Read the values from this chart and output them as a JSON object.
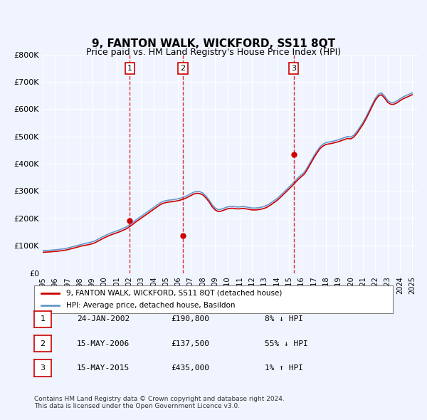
{
  "title": "9, FANTON WALK, WICKFORD, SS11 8QT",
  "subtitle": "Price paid vs. HM Land Registry's House Price Index (HPI)",
  "ylabel": "",
  "xlim": [
    1995,
    2025.5
  ],
  "ylim": [
    0,
    800000
  ],
  "yticks": [
    0,
    100000,
    200000,
    300000,
    400000,
    500000,
    600000,
    700000,
    800000
  ],
  "ytick_labels": [
    "£0",
    "£100K",
    "£200K",
    "£300K",
    "£400K",
    "£500K",
    "£600K",
    "£700K",
    "£800K"
  ],
  "background_color": "#f0f4ff",
  "plot_bg_color": "#f0f4ff",
  "hpi_color": "#6699cc",
  "property_color": "#cc0000",
  "transactions": [
    {
      "date": "24-JAN-2002",
      "year": 2002.07,
      "price": 190800,
      "label": "1",
      "hpi_rel": "8% ↓ HPI"
    },
    {
      "date": "15-MAY-2006",
      "year": 2006.37,
      "price": 137500,
      "label": "2",
      "hpi_rel": "55% ↓ HPI"
    },
    {
      "date": "15-MAY-2015",
      "year": 2015.37,
      "price": 435000,
      "label": "3",
      "hpi_rel": "1% ↑ HPI"
    }
  ],
  "legend_property": "9, FANTON WALK, WICKFORD, SS11 8QT (detached house)",
  "legend_hpi": "HPI: Average price, detached house, Basildon",
  "footer": "Contains HM Land Registry data © Crown copyright and database right 2024.\nThis data is licensed under the Open Government Licence v3.0.",
  "hpi_data": {
    "years": [
      1995.0,
      1995.25,
      1995.5,
      1995.75,
      1996.0,
      1996.25,
      1996.5,
      1996.75,
      1997.0,
      1997.25,
      1997.5,
      1997.75,
      1998.0,
      1998.25,
      1998.5,
      1998.75,
      1999.0,
      1999.25,
      1999.5,
      1999.75,
      2000.0,
      2000.25,
      2000.5,
      2000.75,
      2001.0,
      2001.25,
      2001.5,
      2001.75,
      2002.0,
      2002.25,
      2002.5,
      2002.75,
      2003.0,
      2003.25,
      2003.5,
      2003.75,
      2004.0,
      2004.25,
      2004.5,
      2004.75,
      2005.0,
      2005.25,
      2005.5,
      2005.75,
      2006.0,
      2006.25,
      2006.5,
      2006.75,
      2007.0,
      2007.25,
      2007.5,
      2007.75,
      2008.0,
      2008.25,
      2008.5,
      2008.75,
      2009.0,
      2009.25,
      2009.5,
      2009.75,
      2010.0,
      2010.25,
      2010.5,
      2010.75,
      2011.0,
      2011.25,
      2011.5,
      2011.75,
      2012.0,
      2012.25,
      2012.5,
      2012.75,
      2013.0,
      2013.25,
      2013.5,
      2013.75,
      2014.0,
      2014.25,
      2014.5,
      2014.75,
      2015.0,
      2015.25,
      2015.5,
      2015.75,
      2016.0,
      2016.25,
      2016.5,
      2016.75,
      2017.0,
      2017.25,
      2017.5,
      2017.75,
      2018.0,
      2018.25,
      2018.5,
      2018.75,
      2019.0,
      2019.25,
      2019.5,
      2019.75,
      2020.0,
      2020.25,
      2020.5,
      2020.75,
      2021.0,
      2021.25,
      2021.5,
      2021.75,
      2022.0,
      2022.25,
      2022.5,
      2022.75,
      2023.0,
      2023.25,
      2023.5,
      2023.75,
      2024.0,
      2024.25,
      2024.5,
      2024.75,
      2025.0
    ],
    "values": [
      82000,
      82500,
      83000,
      84000,
      85000,
      86000,
      87500,
      89000,
      91000,
      94000,
      97000,
      100000,
      103000,
      106000,
      109000,
      111000,
      114000,
      118000,
      124000,
      130000,
      136000,
      141000,
      146000,
      150000,
      154000,
      158000,
      163000,
      168000,
      175000,
      183000,
      192000,
      200000,
      208000,
      216000,
      224000,
      232000,
      240000,
      248000,
      256000,
      262000,
      265000,
      267000,
      268000,
      270000,
      272000,
      275000,
      279000,
      284000,
      290000,
      296000,
      299000,
      298000,
      293000,
      282000,
      268000,
      250000,
      238000,
      232000,
      234000,
      238000,
      242000,
      244000,
      244000,
      242000,
      242000,
      244000,
      242000,
      240000,
      238000,
      238000,
      239000,
      241000,
      244000,
      249000,
      256000,
      264000,
      272000,
      282000,
      293000,
      304000,
      315000,
      326000,
      338000,
      350000,
      360000,
      370000,
      388000,
      408000,
      428000,
      446000,
      462000,
      472000,
      478000,
      480000,
      482000,
      485000,
      488000,
      492000,
      496000,
      500000,
      498000,
      505000,
      518000,
      535000,
      552000,
      572000,
      595000,
      618000,
      640000,
      655000,
      660000,
      648000,
      632000,
      625000,
      625000,
      630000,
      638000,
      645000,
      650000,
      655000,
      660000
    ]
  },
  "property_line": {
    "years": [
      1995.0,
      1995.25,
      1995.5,
      1995.75,
      1996.0,
      1996.25,
      1996.5,
      1996.75,
      1997.0,
      1997.25,
      1997.5,
      1997.75,
      1998.0,
      1998.25,
      1998.5,
      1998.75,
      1999.0,
      1999.25,
      1999.5,
      1999.75,
      2000.0,
      2000.25,
      2000.5,
      2000.75,
      2001.0,
      2001.25,
      2001.5,
      2001.75,
      2002.0,
      2002.25,
      2002.5,
      2002.75,
      2003.0,
      2003.25,
      2003.5,
      2003.75,
      2004.0,
      2004.25,
      2004.5,
      2004.75,
      2005.0,
      2005.25,
      2005.5,
      2005.75,
      2006.0,
      2006.25,
      2006.5,
      2006.75,
      2007.0,
      2007.25,
      2007.5,
      2007.75,
      2008.0,
      2008.25,
      2008.5,
      2008.75,
      2009.0,
      2009.25,
      2009.5,
      2009.75,
      2010.0,
      2010.25,
      2010.5,
      2010.75,
      2011.0,
      2011.25,
      2011.5,
      2011.75,
      2012.0,
      2012.25,
      2012.5,
      2012.75,
      2013.0,
      2013.25,
      2013.5,
      2013.75,
      2014.0,
      2014.25,
      2014.5,
      2014.75,
      2015.0,
      2015.25,
      2015.5,
      2015.75,
      2016.0,
      2016.25,
      2016.5,
      2016.75,
      2017.0,
      2017.25,
      2017.5,
      2017.75,
      2018.0,
      2018.25,
      2018.5,
      2018.75,
      2019.0,
      2019.25,
      2019.5,
      2019.75,
      2020.0,
      2020.25,
      2020.5,
      2020.75,
      2021.0,
      2021.25,
      2021.5,
      2021.75,
      2022.0,
      2022.25,
      2022.5,
      2022.75,
      2023.0,
      2023.25,
      2023.5,
      2023.75,
      2024.0,
      2024.25,
      2024.5,
      2024.75,
      2025.0
    ],
    "values": [
      76000,
      76500,
      77000,
      78000,
      79000,
      80000,
      81500,
      83000,
      85000,
      88000,
      91000,
      94000,
      97000,
      100000,
      102000,
      104000,
      107000,
      111000,
      117000,
      123000,
      129000,
      134000,
      139000,
      143000,
      147000,
      151000,
      156000,
      161000,
      168000,
      176000,
      185000,
      193000,
      201000,
      209000,
      217000,
      225000,
      233000,
      241000,
      249000,
      255000,
      258000,
      260000,
      261000,
      263000,
      265000,
      268000,
      272000,
      277000,
      283000,
      289000,
      292000,
      291000,
      286000,
      275000,
      261000,
      243000,
      231000,
      225000,
      227000,
      231000,
      235000,
      237000,
      237000,
      235000,
      235000,
      237000,
      235000,
      233000,
      231000,
      231000,
      232000,
      234000,
      237000,
      242000,
      249000,
      257000,
      265000,
      275000,
      286000,
      297000,
      308000,
      319000,
      331000,
      343000,
      353000,
      363000,
      381000,
      401000,
      421000,
      439000,
      455000,
      465000,
      471000,
      473000,
      475000,
      478000,
      481000,
      485000,
      489000,
      493000,
      491000,
      498000,
      511000,
      528000,
      545000,
      565000,
      588000,
      611000,
      633000,
      648000,
      653000,
      641000,
      625000,
      618000,
      618000,
      623000,
      631000,
      638000,
      643000,
      648000,
      653000
    ]
  }
}
